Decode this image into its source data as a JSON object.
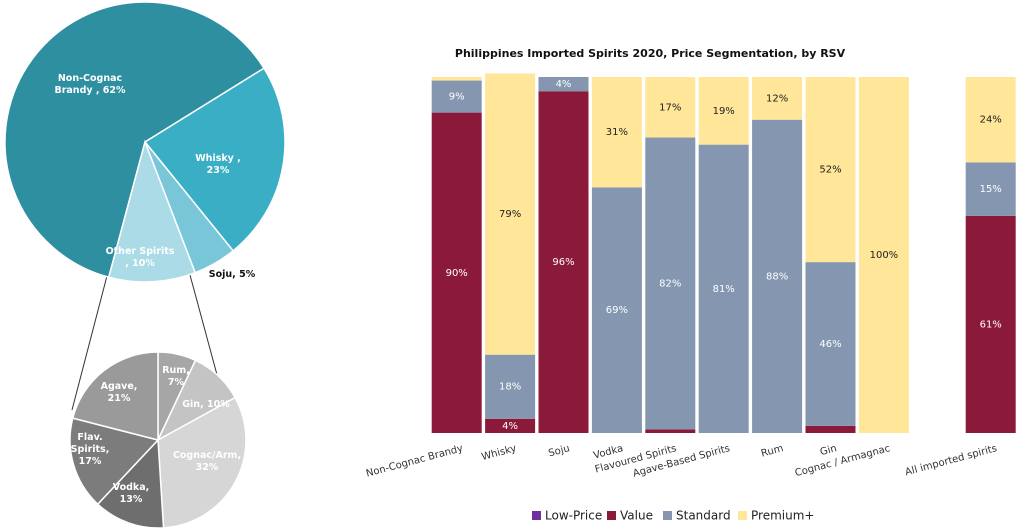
{
  "chart_data": [
    {
      "type": "pie",
      "categories": [
        "Non-Cognac Brandy",
        "Whisky",
        "Soju",
        "Other Spirits"
      ],
      "values": [
        62,
        23,
        5,
        10
      ],
      "value_labels": [
        "Non-Cognac Brandy , 62%",
        "Whisky , 23%",
        "Soju, 5%",
        "Other Spirits , 10%"
      ],
      "colors": [
        "#2e8fa0",
        "#3aaec4",
        "#79c6d8",
        "#aadbe6"
      ],
      "start_angle": 195
    },
    {
      "type": "pie",
      "categories": [
        "Rum",
        "Gin",
        "Cognac/Arm",
        "Vodka",
        "Flav. Spirits",
        "Agave"
      ],
      "values": [
        7,
        10,
        32,
        13,
        17,
        21
      ],
      "value_labels": [
        "Rum, 7%",
        "Gin, 10%",
        "Cognac/Arm, 32%",
        "Vodka, 13%",
        "Flav. Spirits, 17%",
        "Agave, 21%"
      ],
      "colors": [
        "#a6a6a6",
        "#c4c4c4",
        "#d6d6d6",
        "#6e6e6e",
        "#7c7c7c",
        "#9a9a9a"
      ],
      "start_angle": 0
    },
    {
      "type": "stacked_bar",
      "title": "Philippines Imported Spirits 2020, Price Segmentation, by RSV",
      "categories": [
        "Non-Cognac Brandy",
        "Whisky",
        "Soju",
        "Vodka",
        "Flavoured Spirits",
        "Agave-Based Spirits",
        "Rum",
        "Gin",
        "Cognac / Armagnac",
        null,
        "All imported spirits"
      ],
      "ylim": [
        0,
        100
      ],
      "series": [
        {
          "name": "Low-Price",
          "color": "#7030a0",
          "values": [
            0,
            0,
            0,
            0,
            0,
            0,
            0,
            0,
            0,
            null,
            0
          ],
          "value_labels": [
            null,
            null,
            null,
            null,
            null,
            null,
            null,
            null,
            null,
            null,
            null
          ]
        },
        {
          "name": "Value",
          "color": "#8b1a3a",
          "values": [
            90,
            4,
            96,
            0,
            1,
            0,
            0,
            2,
            0,
            null,
            61
          ],
          "value_labels": [
            "90%",
            "4%",
            "96%",
            null,
            null,
            null,
            null,
            null,
            null,
            null,
            "61%"
          ]
        },
        {
          "name": "Standard",
          "color": "#8496b0",
          "values": [
            9,
            18,
            4,
            69,
            82,
            81,
            88,
            46,
            0,
            null,
            15
          ],
          "value_labels": [
            "9%",
            "18%",
            "4%",
            "69%",
            "82%",
            "81%",
            "88%",
            "46%",
            null,
            null,
            "15%"
          ]
        },
        {
          "name": "Premium+",
          "color": "#ffe699",
          "values": [
            1,
            79,
            0,
            31,
            17,
            19,
            12,
            52,
            100,
            null,
            24
          ],
          "value_labels": [
            null,
            "79%",
            null,
            "31%",
            "17%",
            "19%",
            "12%",
            "52%",
            "100%",
            null,
            "24%"
          ]
        }
      ],
      "legend": "bottom"
    }
  ]
}
